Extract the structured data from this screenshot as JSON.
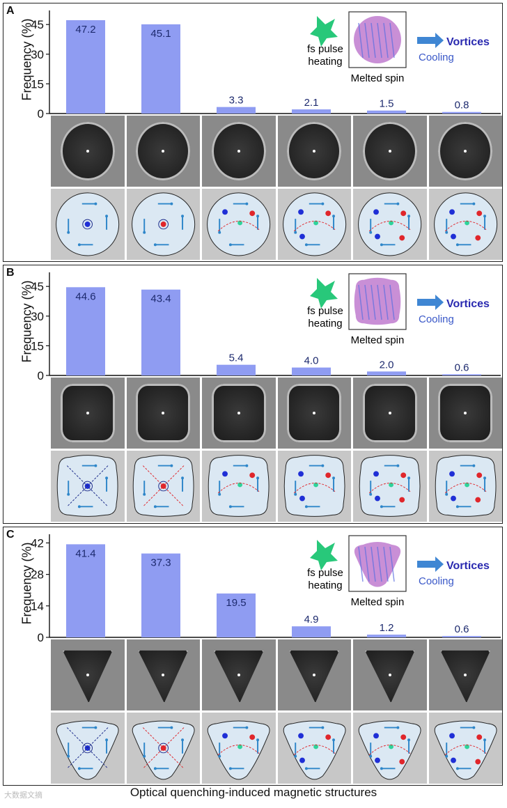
{
  "panels": [
    {
      "letter": "A",
      "shape": "circle",
      "chart_data": {
        "type": "bar",
        "ylabel": "Frequency (%)",
        "yticks": [
          0,
          15,
          30,
          45
        ],
        "ylim": [
          0,
          50
        ],
        "values": [
          47.2,
          45.1,
          3.3,
          2.1,
          1.5,
          0.8
        ],
        "value_labels": [
          "47.2",
          "45.1",
          "3.3",
          "2.1",
          "1.5",
          "0.8"
        ]
      },
      "inset": {
        "heating": [
          "fs pulse",
          "heating"
        ],
        "melted": "Melted spin",
        "vortices": "Vortices",
        "cooling": "Cooling"
      }
    },
    {
      "letter": "B",
      "shape": "square",
      "chart_data": {
        "type": "bar",
        "ylabel": "Frequency (%)",
        "yticks": [
          0,
          15,
          30,
          45
        ],
        "ylim": [
          0,
          50
        ],
        "values": [
          44.6,
          43.4,
          5.4,
          4.0,
          2.0,
          0.6
        ],
        "value_labels": [
          "44.6",
          "43.4",
          "5.4",
          "4.0",
          "2.0",
          "0.6"
        ]
      },
      "inset": {
        "heating": [
          "fs pulse",
          "heating"
        ],
        "melted": "Melted spin",
        "vortices": "Vortices",
        "cooling": "Cooling"
      }
    },
    {
      "letter": "C",
      "shape": "triangle",
      "chart_data": {
        "type": "bar",
        "ylabel": "Frequency (%)",
        "yticks": [
          0,
          14,
          28,
          42
        ],
        "ylim": [
          0,
          44
        ],
        "values": [
          41.4,
          37.3,
          19.5,
          4.9,
          1.2,
          0.6
        ],
        "value_labels": [
          "41.4",
          "37.3",
          "19.5",
          "4.9",
          "1.2",
          "0.6"
        ]
      },
      "inset": {
        "heating": [
          "fs pulse",
          "heating"
        ],
        "melted": "Melted spin",
        "vortices": "Vortices",
        "cooling": "Cooling"
      }
    }
  ],
  "caption": "Optical quenching-induced magnetic structures",
  "watermark": "大数据文摘",
  "colors": {
    "bar": "#8f9cf2",
    "bar_label": "#1d2a6e",
    "arrow": "#2e86c9",
    "vortex_blue": "#1f2fd6",
    "vortex_red": "#e0262b",
    "antivortex": "#2fd39a",
    "cooling_text": "#3a58c8",
    "vortices_text": "#2a2ab0"
  }
}
